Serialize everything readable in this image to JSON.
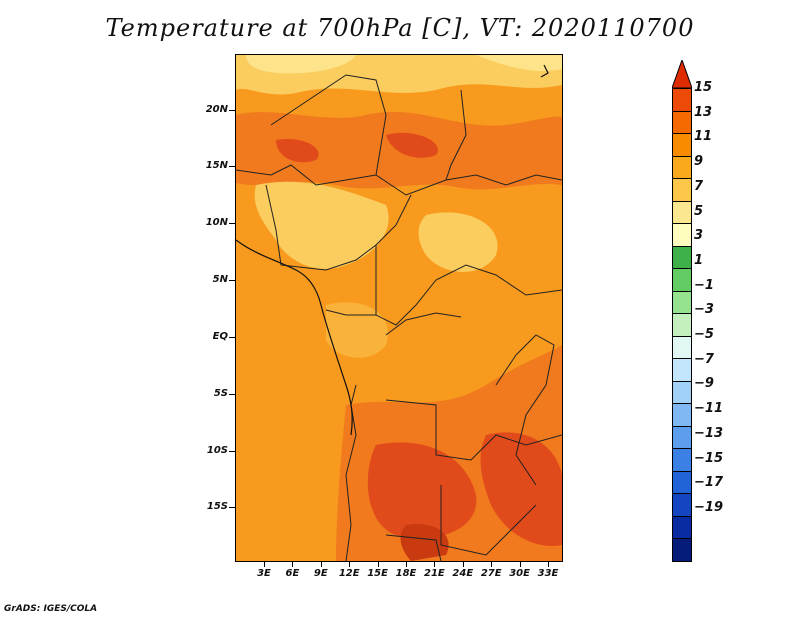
{
  "title": "Temperature at 700hPa [C], VT: 2020110700",
  "footer": "GrADS: IGES/COLA",
  "lat_labels": [
    "20N",
    "15N",
    "10N",
    "5N",
    "EQ",
    "5S",
    "10S",
    "15S"
  ],
  "lon_labels": [
    "3E",
    "6E",
    "9E",
    "12E",
    "15E",
    "18E",
    "21E",
    "24E",
    "27E",
    "30E",
    "33E"
  ],
  "colorbar": {
    "labels": [
      "15",
      "13",
      "11",
      "9",
      "7",
      "5",
      "3",
      "1",
      "−1",
      "−3",
      "−5",
      "−7",
      "−9",
      "−11",
      "−13",
      "−15",
      "−17",
      "−19"
    ],
    "colors": [
      "#dd2c00",
      "#ee4a07",
      "#f56a00",
      "#f98b00",
      "#fba91c",
      "#fcc748",
      "#fce791",
      "#fefcbf",
      "#3db049",
      "#62cc62",
      "#96e28f",
      "#c3f0bc",
      "#e1f7f3",
      "#c4e6fc",
      "#a2d1f8",
      "#7fb8f3",
      "#5d9ded",
      "#3a80e5",
      "#2263d7",
      "#1446c1",
      "#0a2ca3",
      "#051c7a"
    ]
  },
  "map_colors": {
    "hot": "#e14a1b",
    "warm": "#f07a1d",
    "mid": "#f79a1e",
    "mild": "#fab33a",
    "cool": "#fbcc5e",
    "cold": "#fde38a",
    "pale": "#fdf1b4"
  }
}
